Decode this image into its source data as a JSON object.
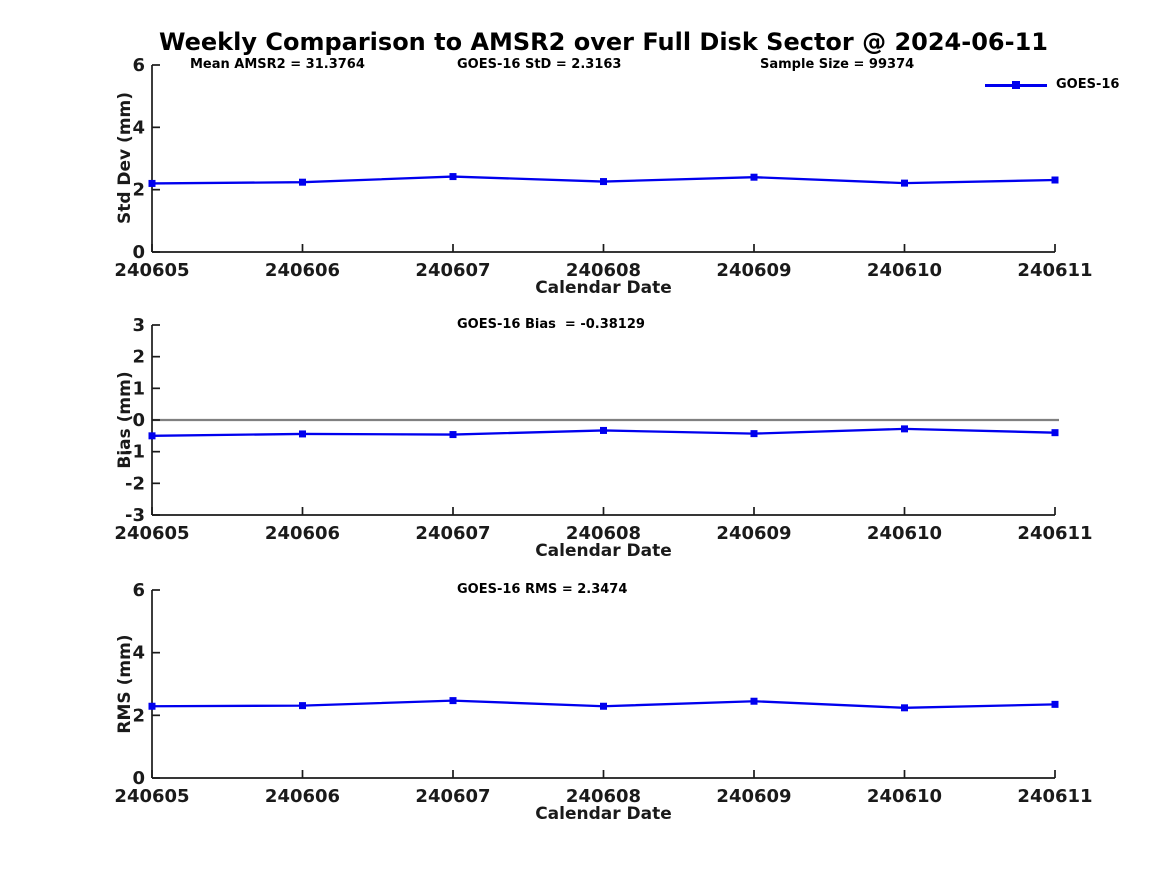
{
  "title": "Weekly Comparison to AMSR2 over Full Disk Sector @ 2024-06-11",
  "legend": {
    "label": "GOES-16",
    "color": "#0000ee"
  },
  "colors": {
    "line": "#0000ee",
    "marker": "#0000ee",
    "zero_line": "#808080",
    "axis": "#1a1a1a",
    "text": "#000000"
  },
  "annotations": {
    "mean_amsr2": "Mean AMSR2 = 31.3764",
    "goes16_std": "GOES-16 StD = 2.3163",
    "sample_size": "Sample Size = 99374",
    "goes16_bias": "GOES-16 Bias  = -0.38129",
    "goes16_rms": "GOES-16 RMS = 2.3474"
  },
  "chart_data": [
    {
      "type": "line",
      "title": "",
      "annotations": [
        "Mean AMSR2 = 31.3764",
        "GOES-16 StD = 2.3163",
        "Sample Size = 99374"
      ],
      "categories": [
        "240605",
        "240606",
        "240607",
        "240608",
        "240609",
        "240610",
        "240611"
      ],
      "series": [
        {
          "name": "GOES-16",
          "values": [
            2.2,
            2.24,
            2.42,
            2.26,
            2.4,
            2.21,
            2.31
          ]
        }
      ],
      "xlabel": "Calendar Date",
      "ylabel": "Std Dev (mm)",
      "ylim": [
        0,
        6
      ],
      "yticks": [
        0,
        2,
        4,
        6
      ],
      "zero_line": false,
      "grid": false,
      "legend_position": "top-right-outside"
    },
    {
      "type": "line",
      "title": "",
      "annotations": [
        "GOES-16 Bias  = -0.38129"
      ],
      "categories": [
        "240605",
        "240606",
        "240607",
        "240608",
        "240609",
        "240610",
        "240611"
      ],
      "series": [
        {
          "name": "GOES-16",
          "values": [
            -0.5,
            -0.44,
            -0.46,
            -0.33,
            -0.43,
            -0.28,
            -0.4
          ]
        }
      ],
      "xlabel": "Calendar Date",
      "ylabel": "Bias (mm)",
      "ylim": [
        -3,
        3
      ],
      "yticks": [
        -3,
        -2,
        -1,
        0,
        1,
        2,
        3
      ],
      "zero_line": true,
      "grid": false,
      "legend_position": "none"
    },
    {
      "type": "line",
      "title": "",
      "annotations": [
        "GOES-16 RMS = 2.3474"
      ],
      "categories": [
        "240605",
        "240606",
        "240607",
        "240608",
        "240609",
        "240610",
        "240611"
      ],
      "series": [
        {
          "name": "GOES-16",
          "values": [
            2.29,
            2.31,
            2.47,
            2.29,
            2.45,
            2.24,
            2.35
          ]
        }
      ],
      "xlabel": "Calendar Date",
      "ylabel": "RMS (mm)",
      "ylim": [
        0,
        6
      ],
      "yticks": [
        0,
        2,
        4,
        6
      ],
      "zero_line": false,
      "grid": false,
      "legend_position": "none"
    }
  ]
}
